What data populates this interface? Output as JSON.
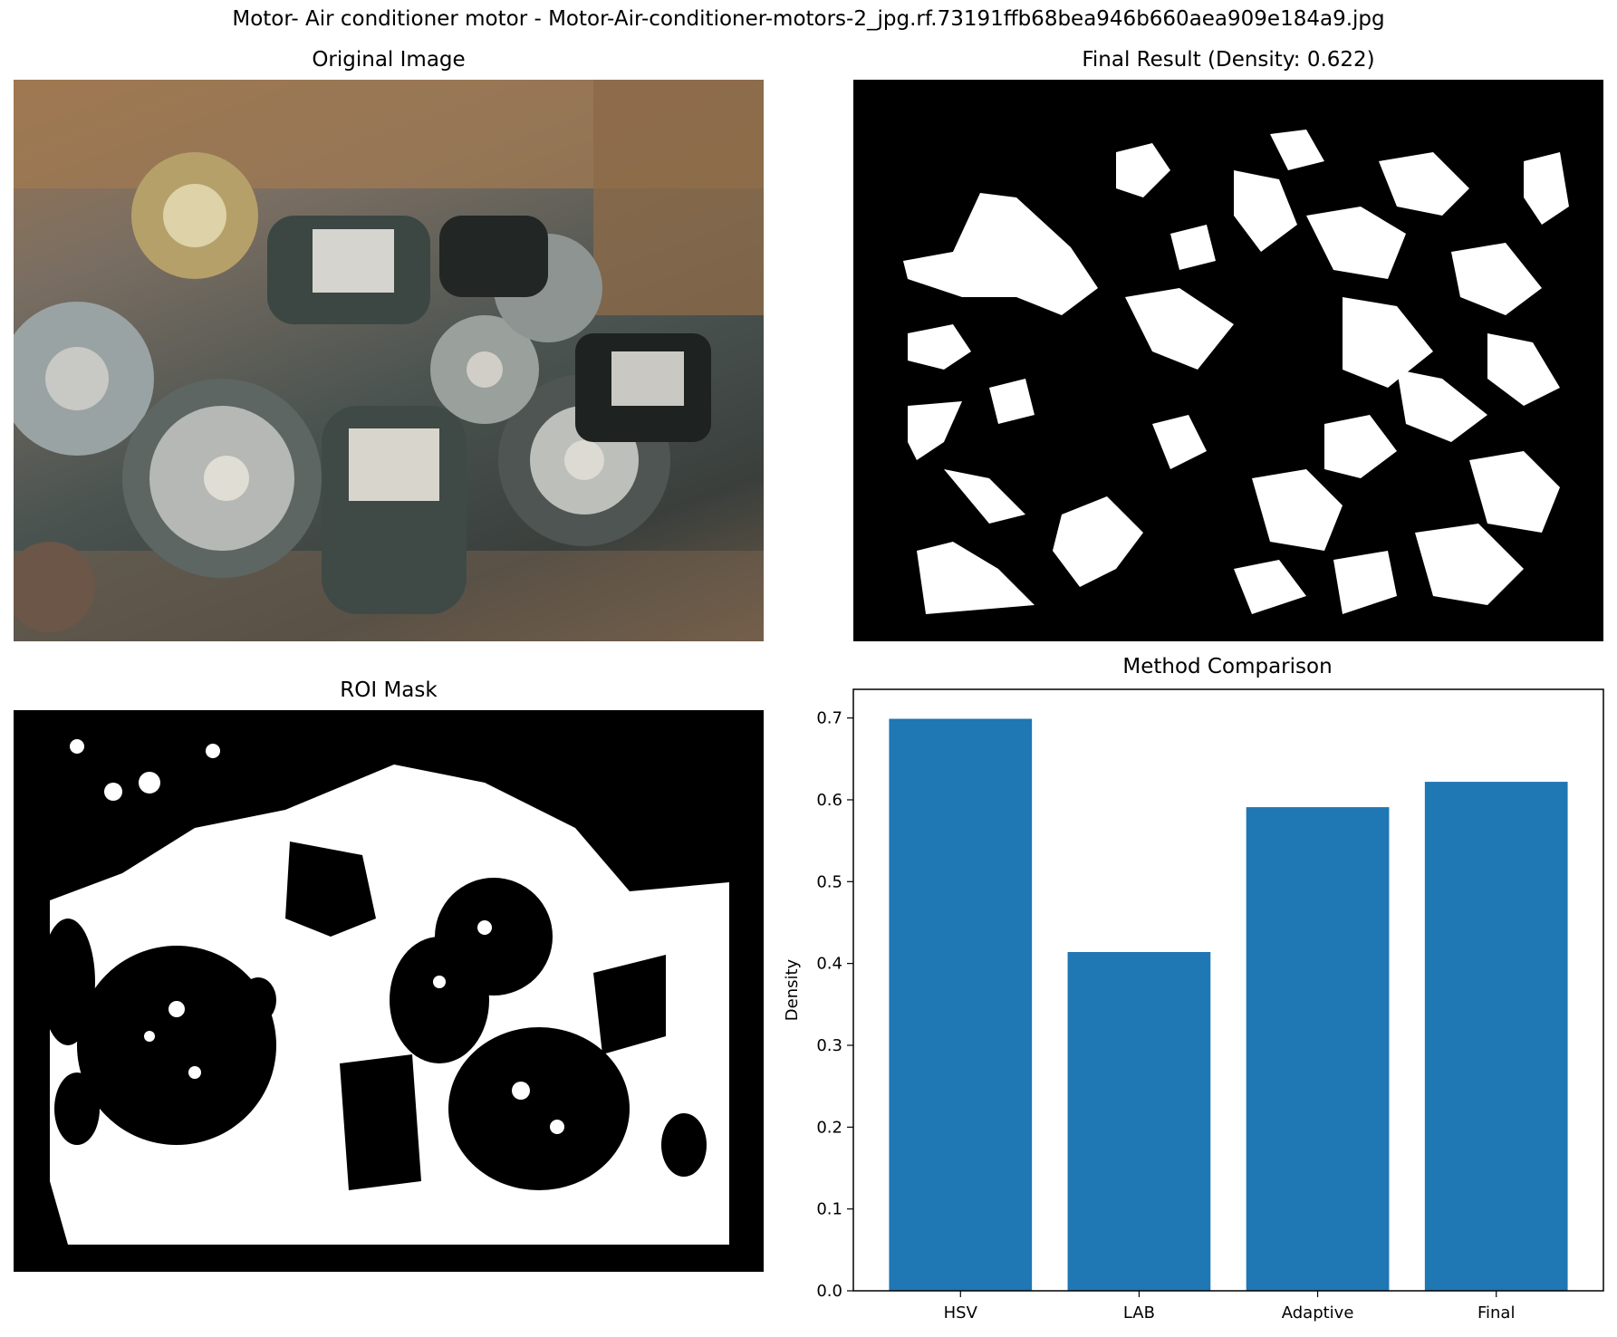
{
  "suptitle": "Motor- Air conditioner motor - Motor-Air-conditioner-motors-2_jpg.rf.73191ffb68bea946b660aea909e184a9.jpg",
  "panels": {
    "original_title": "Original Image",
    "final_title": "Final Result (Density: 0.622)",
    "roi_title": "ROI Mask",
    "chart_title": "Method Comparison"
  },
  "colors": {
    "bar": "#1f77b4",
    "mask_fg": "#ffffff",
    "mask_bg": "#000000"
  },
  "chart_data": {
    "type": "bar",
    "title": "Method Comparison",
    "xlabel": "",
    "ylabel": "Density",
    "categories": [
      "HSV",
      "LAB",
      "Adaptive",
      "Final"
    ],
    "values": [
      0.699,
      0.414,
      0.591,
      0.622
    ],
    "ylim": [
      0,
      0.735
    ],
    "yticks": [
      0.0,
      0.1,
      0.2,
      0.3,
      0.4,
      0.5,
      0.6,
      0.7
    ],
    "ytick_labels": [
      "0.0",
      "0.1",
      "0.2",
      "0.3",
      "0.4",
      "0.5",
      "0.6",
      "0.7"
    ],
    "grid": false,
    "legend": "none"
  }
}
